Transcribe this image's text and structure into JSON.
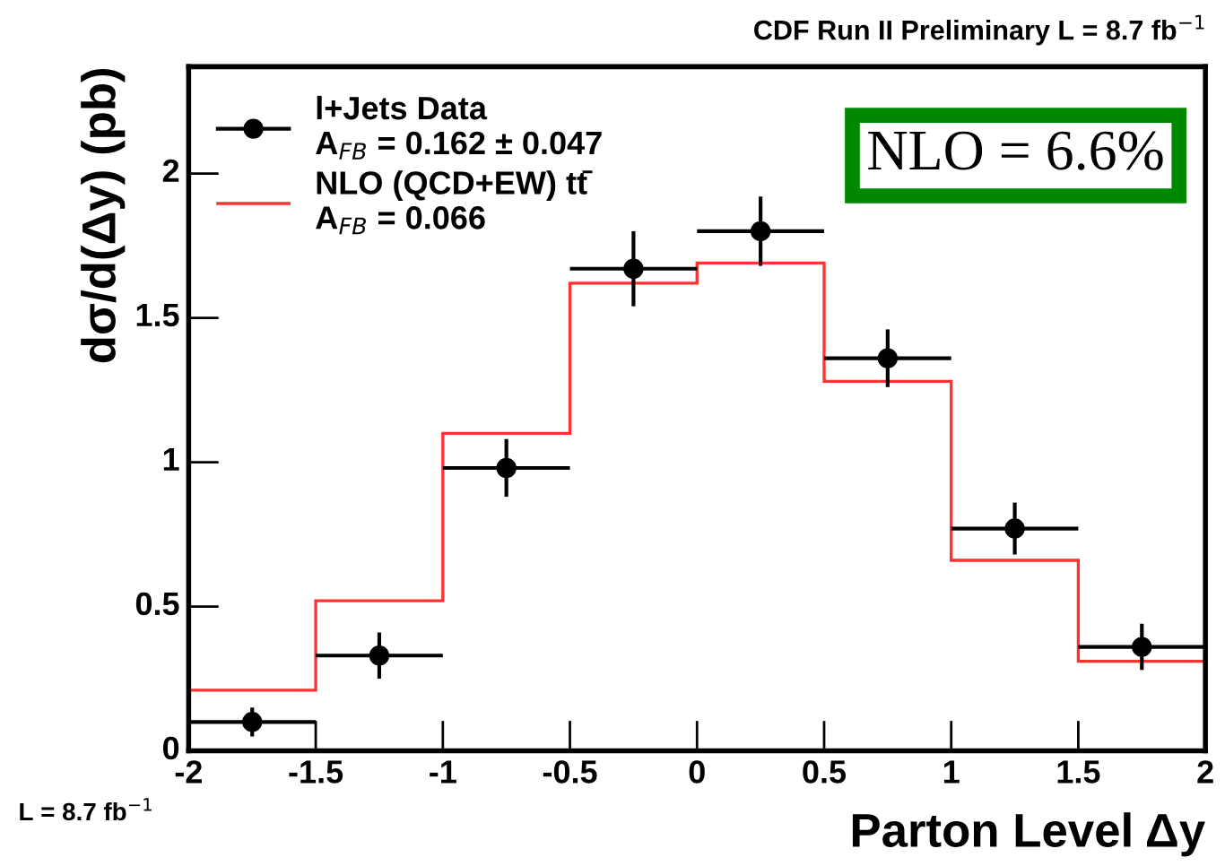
{
  "chart_data": {
    "type": "scatter",
    "title": "CDF Run II Preliminary L = 8.7 fb$^{−1}$",
    "xlabel": "Parton Level Δy",
    "ylabel": "dσ/d(Δy) (pb)",
    "xlim": [
      -2,
      2
    ],
    "xticks": [
      -2,
      -1.5,
      -1,
      -0.5,
      0,
      0.5,
      1,
      1.5,
      2
    ],
    "ylim": [
      0,
      2.37
    ],
    "yticks": [
      0,
      0.5,
      1,
      1.5,
      2
    ],
    "grid": false,
    "legend": "top left",
    "marker": "circle",
    "annotations": [
      "NLO = 6.6%",
      "L = 8.7 fb$^{−1}$"
    ],
    "series": [
      {
        "name": "l+Jets Data\nA$_{FB}$ = 0.162 ± 0.047",
        "color": "#000000",
        "x": [
          -1.75,
          -1.25,
          -0.75,
          -0.25,
          0.25,
          0.75,
          1.25,
          1.75
        ],
        "values": [
          0.1,
          0.33,
          0.98,
          1.67,
          1.8,
          1.36,
          0.77,
          0.36
        ],
        "errors": [
          0.05,
          0.08,
          0.1,
          0.13,
          0.12,
          0.1,
          0.09,
          0.08
        ],
        "xerrors": [
          0.25,
          0.25,
          0.25,
          0.25,
          0.25,
          0.25,
          0.25,
          0.25
        ]
      },
      {
        "name": "NLO (QCD+EW) tt̄\nA$_{FB}$ = 0.066",
        "type": "histogram",
        "color": "#ff3333",
        "bins": [
          -2,
          -1.5,
          -1,
          -0.5,
          0,
          0.5,
          1,
          1.5,
          2
        ],
        "values": [
          0.21,
          0.52,
          1.1,
          1.62,
          1.69,
          1.28,
          0.66,
          0.31
        ]
      }
    ]
  }
}
